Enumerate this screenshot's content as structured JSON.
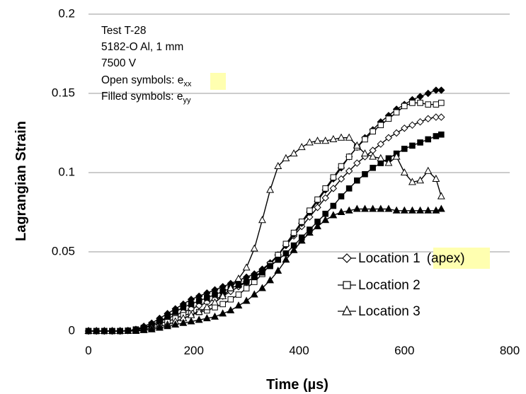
{
  "chart_data": {
    "type": "line",
    "xlabel": "Time (µs)",
    "ylabel": "Lagrangian Strain",
    "xlim": [
      0,
      800
    ],
    "ylim": [
      0,
      0.2
    ],
    "x_ticks": [
      0,
      200,
      400,
      600,
      800
    ],
    "y_ticks": [
      0,
      0.05,
      0.1,
      0.15,
      0.2
    ],
    "x_tick_labels": [
      "0",
      "200",
      "400",
      "600",
      "800"
    ],
    "y_tick_labels": [
      "0",
      "0.05",
      "0.1",
      "0.15",
      "0.2"
    ],
    "grid": "horizontal",
    "annotation": {
      "lines": [
        "Test T-28",
        "5182-O Al, 1 mm",
        "7500 V"
      ],
      "open_label": "Open symbols: ",
      "open_var": "e",
      "open_sub": "xx",
      "filled_label": "Filled symbols: ",
      "filled_var": "e",
      "filled_sub": "yy"
    },
    "legend": {
      "position": "lower-right",
      "entries": [
        {
          "marker": "diamond",
          "label": "Location 1",
          "extra": "(apex)"
        },
        {
          "marker": "square",
          "label": "Location 2",
          "extra": ""
        },
        {
          "marker": "triangle",
          "label": "Location 3",
          "extra": ""
        }
      ]
    },
    "series": [
      {
        "marker": "diamond",
        "filled": false,
        "x": [
          0,
          15,
          30,
          45,
          60,
          75,
          90,
          105,
          120,
          135,
          150,
          165,
          180,
          195,
          210,
          225,
          240,
          255,
          270,
          285,
          300,
          315,
          330,
          345,
          360,
          375,
          390,
          405,
          420,
          435,
          450,
          465,
          480,
          495,
          510,
          525,
          540,
          555,
          570,
          585,
          600,
          615,
          630,
          645,
          660,
          670
        ],
        "y": [
          0,
          0,
          0,
          0,
          0,
          0.0003,
          0.001,
          0.002,
          0.004,
          0.006,
          0.008,
          0.01,
          0.012,
          0.014,
          0.016,
          0.018,
          0.02,
          0.022,
          0.025,
          0.028,
          0.031,
          0.034,
          0.038,
          0.043,
          0.048,
          0.054,
          0.06,
          0.066,
          0.072,
          0.078,
          0.084,
          0.09,
          0.096,
          0.101,
          0.106,
          0.11,
          0.114,
          0.118,
          0.122,
          0.125,
          0.128,
          0.13,
          0.132,
          0.134,
          0.135,
          0.135
        ]
      },
      {
        "marker": "diamond",
        "filled": true,
        "x": [
          0,
          15,
          30,
          45,
          60,
          75,
          90,
          105,
          120,
          135,
          150,
          165,
          180,
          195,
          210,
          225,
          240,
          255,
          270,
          285,
          300,
          315,
          330,
          345,
          360,
          375,
          390,
          405,
          420,
          435,
          450,
          465,
          480,
          495,
          510,
          525,
          540,
          555,
          570,
          585,
          600,
          615,
          630,
          645,
          660,
          670
        ],
        "y": [
          0,
          0,
          0,
          0,
          0,
          0.0003,
          0.001,
          0.003,
          0.005,
          0.008,
          0.011,
          0.014,
          0.017,
          0.02,
          0.022,
          0.024,
          0.026,
          0.028,
          0.03,
          0.032,
          0.034,
          0.036,
          0.039,
          0.043,
          0.048,
          0.054,
          0.061,
          0.068,
          0.075,
          0.082,
          0.089,
          0.096,
          0.103,
          0.11,
          0.116,
          0.122,
          0.127,
          0.132,
          0.136,
          0.14,
          0.143,
          0.146,
          0.148,
          0.15,
          0.152,
          0.152
        ]
      },
      {
        "marker": "square",
        "filled": false,
        "x": [
          0,
          15,
          30,
          45,
          60,
          75,
          90,
          105,
          120,
          135,
          150,
          165,
          180,
          195,
          210,
          225,
          240,
          255,
          270,
          285,
          300,
          315,
          330,
          345,
          360,
          375,
          390,
          405,
          420,
          435,
          450,
          465,
          480,
          495,
          510,
          525,
          540,
          555,
          570,
          585,
          600,
          615,
          630,
          645,
          660,
          670
        ],
        "y": [
          0,
          0,
          0,
          0,
          0,
          0.0002,
          0.001,
          0.002,
          0.003,
          0.005,
          0.006,
          0.008,
          0.01,
          0.011,
          0.012,
          0.013,
          0.015,
          0.017,
          0.02,
          0.023,
          0.027,
          0.031,
          0.036,
          0.042,
          0.048,
          0.055,
          0.062,
          0.069,
          0.076,
          0.083,
          0.09,
          0.097,
          0.104,
          0.11,
          0.116,
          0.121,
          0.126,
          0.13,
          0.134,
          0.138,
          0.142,
          0.144,
          0.144,
          0.143,
          0.143,
          0.144
        ]
      },
      {
        "marker": "square",
        "filled": true,
        "x": [
          0,
          15,
          30,
          45,
          60,
          75,
          90,
          105,
          120,
          135,
          150,
          165,
          180,
          195,
          210,
          225,
          240,
          255,
          270,
          285,
          300,
          315,
          330,
          345,
          360,
          375,
          390,
          405,
          420,
          435,
          450,
          465,
          480,
          495,
          510,
          525,
          540,
          555,
          570,
          585,
          600,
          615,
          630,
          645,
          660,
          670
        ],
        "y": [
          0,
          0,
          0,
          0,
          0,
          0.0003,
          0.001,
          0.002,
          0.004,
          0.006,
          0.009,
          0.012,
          0.015,
          0.017,
          0.019,
          0.021,
          0.023,
          0.025,
          0.027,
          0.029,
          0.031,
          0.034,
          0.037,
          0.041,
          0.045,
          0.049,
          0.054,
          0.059,
          0.064,
          0.069,
          0.074,
          0.079,
          0.085,
          0.09,
          0.095,
          0.099,
          0.103,
          0.106,
          0.109,
          0.112,
          0.115,
          0.117,
          0.119,
          0.121,
          0.123,
          0.124
        ]
      },
      {
        "marker": "triangle",
        "filled": false,
        "x": [
          0,
          15,
          30,
          45,
          60,
          75,
          90,
          105,
          120,
          135,
          150,
          165,
          180,
          195,
          210,
          225,
          240,
          255,
          270,
          285,
          300,
          315,
          330,
          345,
          360,
          375,
          390,
          405,
          420,
          435,
          450,
          465,
          480,
          495,
          510,
          525,
          540,
          555,
          570,
          585,
          600,
          615,
          630,
          645,
          660,
          670
        ],
        "y": [
          0,
          0,
          0,
          0,
          0,
          0,
          0.0005,
          0.001,
          0.002,
          0.003,
          0.004,
          0.006,
          0.008,
          0.01,
          0.012,
          0.015,
          0.018,
          0.022,
          0.027,
          0.033,
          0.04,
          0.052,
          0.07,
          0.089,
          0.104,
          0.109,
          0.112,
          0.116,
          0.119,
          0.12,
          0.12,
          0.121,
          0.122,
          0.122,
          0.117,
          0.112,
          0.11,
          0.109,
          0.106,
          0.11,
          0.1,
          0.094,
          0.095,
          0.101,
          0.096,
          0.085
        ]
      },
      {
        "marker": "triangle",
        "filled": true,
        "x": [
          0,
          15,
          30,
          45,
          60,
          75,
          90,
          105,
          120,
          135,
          150,
          165,
          180,
          195,
          210,
          225,
          240,
          255,
          270,
          285,
          300,
          315,
          330,
          345,
          360,
          375,
          390,
          405,
          420,
          435,
          450,
          465,
          480,
          495,
          510,
          525,
          540,
          555,
          570,
          585,
          600,
          615,
          630,
          645,
          660,
          670
        ],
        "y": [
          0,
          0,
          0,
          0,
          0,
          0,
          0,
          0.0005,
          0.001,
          0.002,
          0.003,
          0.004,
          0.005,
          0.006,
          0.007,
          0.008,
          0.009,
          0.011,
          0.013,
          0.016,
          0.019,
          0.023,
          0.027,
          0.032,
          0.038,
          0.045,
          0.051,
          0.057,
          0.062,
          0.066,
          0.07,
          0.073,
          0.075,
          0.076,
          0.077,
          0.077,
          0.077,
          0.077,
          0.077,
          0.076,
          0.076,
          0.076,
          0.076,
          0.076,
          0.076,
          0.077
        ]
      }
    ]
  }
}
